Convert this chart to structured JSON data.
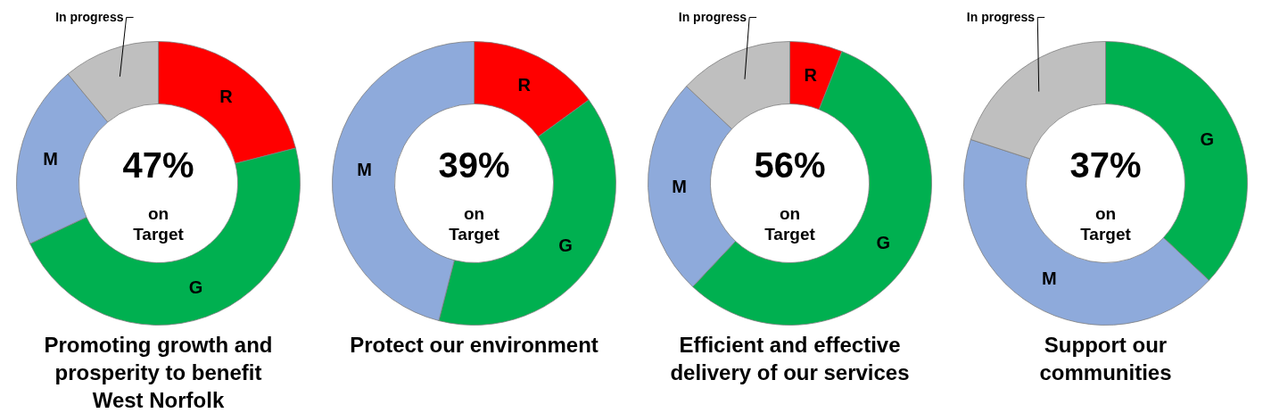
{
  "chart_data": [
    {
      "type": "donut",
      "title": "Promoting growth and\nprosperity to benefit\nWest Norfolk",
      "categories": [
        "R",
        "G",
        "M",
        "In progress"
      ],
      "values": [
        21,
        47,
        21,
        11
      ],
      "colors": [
        "#ff0000",
        "#00b050",
        "#8eaadb",
        "#bfbfbf"
      ],
      "annotations": [
        "47%",
        "on\nTarget"
      ],
      "legend": false
    },
    {
      "type": "donut",
      "title": "Protect our environment",
      "categories": [
        "R",
        "G",
        "M"
      ],
      "values": [
        15,
        39,
        46
      ],
      "colors": [
        "#ff0000",
        "#00b050",
        "#8eaadb"
      ],
      "annotations": [
        "39%",
        "on\nTarget"
      ],
      "legend": false
    },
    {
      "type": "donut",
      "title": "Efficient and effective\ndelivery of our services",
      "categories": [
        "R",
        "G",
        "M",
        "In progress"
      ],
      "values": [
        6,
        56,
        25,
        13
      ],
      "colors": [
        "#ff0000",
        "#00b050",
        "#8eaadb",
        "#bfbfbf"
      ],
      "annotations": [
        "56%",
        "on\nTarget"
      ],
      "legend": false
    },
    {
      "type": "donut",
      "title": "Support our\ncommunities",
      "categories": [
        "G",
        "M",
        "In progress"
      ],
      "values": [
        37,
        43,
        20
      ],
      "colors": [
        "#00b050",
        "#8eaadb",
        "#bfbfbf"
      ],
      "annotations": [
        "37%",
        "on\nTarget"
      ],
      "legend": false
    }
  ]
}
